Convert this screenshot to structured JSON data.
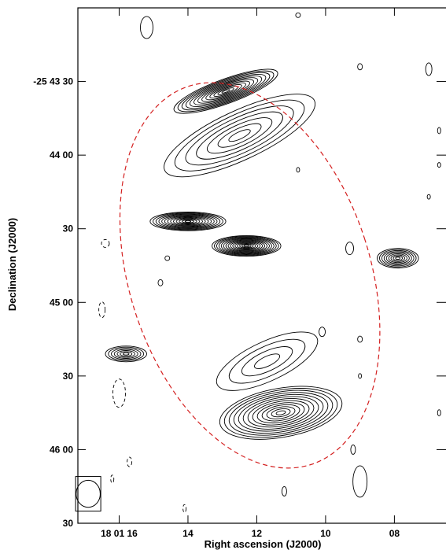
{
  "chart_data": {
    "type": "contour",
    "xlabel": "Right ascension (J2000)",
    "ylabel": "Declination (J2000)",
    "x_ticks": [
      {
        "label": "18 01 16",
        "ra_s": 16
      },
      {
        "label": "14",
        "ra_s": 14
      },
      {
        "label": "12",
        "ra_s": 12
      },
      {
        "label": "10",
        "ra_s": 10
      },
      {
        "label": "08",
        "ra_s": 8
      }
    ],
    "y_ticks": [
      {
        "label": "-25 43 30",
        "dec_arcsec": 30
      },
      {
        "label": "44 00",
        "dec_arcsec": 60
      },
      {
        "label": "30",
        "dec_arcsec": 90
      },
      {
        "label": "45 00",
        "dec_arcsec": 120
      },
      {
        "label": "30",
        "dec_arcsec": 150
      },
      {
        "label": "46 00",
        "dec_arcsec": 180
      },
      {
        "label": "30",
        "dec_arcsec": 210
      }
    ],
    "xlim_ra_s": [
      17.2,
      6.5
    ],
    "ylim_dec_arcsec_below_m25d43m": [
      210,
      0
    ],
    "contour_color": "#000000",
    "ellipse_color": "#d42020",
    "sources": [
      {
        "name": "north-lobe",
        "ra_s": 12.9,
        "dec_arcsec": 34,
        "levels": 13,
        "sx": 1.6,
        "sy": 5.0,
        "angle": -20
      },
      {
        "name": "ridge-upper",
        "ra_s": 12.5,
        "dec_arcsec": 52,
        "levels": 7,
        "sx": 2.4,
        "sy": 10.0,
        "angle": -25
      },
      {
        "name": "east-knot",
        "ra_s": 14.0,
        "dec_arcsec": 87,
        "levels": 13,
        "sx": 1.1,
        "sy": 3.8,
        "angle": 0
      },
      {
        "name": "core",
        "ra_s": 12.3,
        "dec_arcsec": 97,
        "levels": 15,
        "sx": 1.0,
        "sy": 4.2,
        "angle": 0
      },
      {
        "name": "west-source",
        "ra_s": 7.9,
        "dec_arcsec": 102,
        "levels": 9,
        "sx": 0.6,
        "sy": 4.0,
        "angle": 0
      },
      {
        "name": "southeast-source",
        "ra_s": 15.8,
        "dec_arcsec": 141,
        "levels": 7,
        "sx": 0.6,
        "sy": 3.2,
        "angle": 0
      },
      {
        "name": "south-lobe",
        "ra_s": 11.3,
        "dec_arcsec": 165,
        "levels": 13,
        "sx": 1.8,
        "sy": 10.0,
        "angle": -10
      },
      {
        "name": "southern-tail",
        "ra_s": 11.7,
        "dec_arcsec": 144,
        "levels": 4,
        "sx": 1.6,
        "sy": 8.0,
        "angle": -25
      }
    ],
    "ellipse": {
      "ra_s": 12.2,
      "dec_arcsec": 109,
      "a_arcsec": 81,
      "b_ra_s": 3.5,
      "angle": -18
    },
    "beam": {
      "ra_s": 16.9,
      "dec_arcsec": 198,
      "a_arcsec": 5.5,
      "b_ra_s": 0.35
    }
  }
}
